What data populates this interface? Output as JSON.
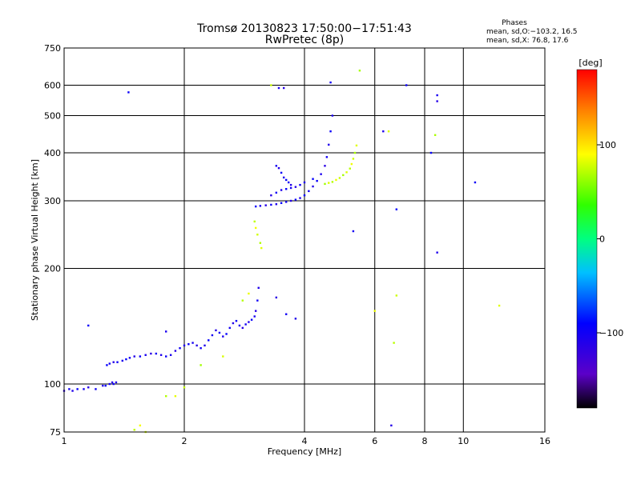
{
  "chart_data": {
    "type": "scatter",
    "title": "Tromsø 20130823 17:50:00−17:51:43",
    "subtitle": "RwPretec (8p)",
    "stats": {
      "heading": "Phases",
      "line1": "mean, sd,O:−103.2, 16.5",
      "line2": "mean, sd,X:  76.8, 17.6"
    },
    "xlabel": "Frequency [MHz]",
    "ylabel": "Stationary phase Virtual Height [km]",
    "x_scale": "log",
    "y_scale": "log",
    "xlim": [
      1,
      16
    ],
    "ylim": [
      75,
      750
    ],
    "x_ticks": [
      1,
      2,
      4,
      6,
      8,
      10,
      16
    ],
    "x_tick_labels": [
      "1",
      "2",
      "4",
      "6",
      "8",
      "10",
      "16"
    ],
    "y_ticks": [
      75,
      100,
      200,
      300,
      400,
      500,
      600,
      750
    ],
    "y_tick_labels": [
      "75",
      "100",
      "200",
      "300",
      "400",
      "500",
      "600",
      "750"
    ],
    "grid": true,
    "colorbar": {
      "label": "[deg]",
      "range": [
        -180,
        180
      ],
      "ticks": [
        100,
        0,
        -100
      ],
      "tick_labels": [
        "100",
        "0",
        "−100"
      ]
    },
    "series": [
      {
        "name": "O",
        "color_phase": -103.2,
        "points": [
          [
            1.0,
            96
          ],
          [
            1.03,
            97
          ],
          [
            1.05,
            96
          ],
          [
            1.08,
            97
          ],
          [
            1.12,
            97
          ],
          [
            1.15,
            98
          ],
          [
            1.2,
            97
          ],
          [
            1.25,
            99
          ],
          [
            1.27,
            99
          ],
          [
            1.3,
            100
          ],
          [
            1.32,
            101
          ],
          [
            1.33,
            100
          ],
          [
            1.35,
            101
          ],
          [
            1.28,
            112
          ],
          [
            1.3,
            113
          ],
          [
            1.33,
            114
          ],
          [
            1.36,
            114
          ],
          [
            1.4,
            115
          ],
          [
            1.43,
            116
          ],
          [
            1.46,
            117
          ],
          [
            1.5,
            118
          ],
          [
            1.55,
            118
          ],
          [
            1.6,
            119
          ],
          [
            1.65,
            120
          ],
          [
            1.7,
            120
          ],
          [
            1.75,
            119
          ],
          [
            1.8,
            118
          ],
          [
            1.85,
            119
          ],
          [
            1.9,
            122
          ],
          [
            1.95,
            124
          ],
          [
            2.0,
            126
          ],
          [
            2.05,
            127
          ],
          [
            2.1,
            128
          ],
          [
            2.15,
            126
          ],
          [
            2.2,
            124
          ],
          [
            2.25,
            126
          ],
          [
            2.3,
            130
          ],
          [
            2.35,
            134
          ],
          [
            2.4,
            138
          ],
          [
            2.45,
            136
          ],
          [
            2.5,
            133
          ],
          [
            2.55,
            135
          ],
          [
            2.6,
            140
          ],
          [
            2.65,
            144
          ],
          [
            2.7,
            146
          ],
          [
            2.75,
            142
          ],
          [
            2.8,
            140
          ],
          [
            2.85,
            143
          ],
          [
            2.9,
            145
          ],
          [
            2.95,
            147
          ],
          [
            3.0,
            150
          ],
          [
            3.02,
            155
          ],
          [
            3.05,
            165
          ],
          [
            3.07,
            178
          ],
          [
            3.02,
            290
          ],
          [
            3.1,
            291
          ],
          [
            3.2,
            292
          ],
          [
            3.3,
            293
          ],
          [
            3.4,
            294
          ],
          [
            3.5,
            296
          ],
          [
            3.6,
            298
          ],
          [
            3.7,
            300
          ],
          [
            3.8,
            302
          ],
          [
            3.9,
            305
          ],
          [
            4.0,
            310
          ],
          [
            4.1,
            318
          ],
          [
            4.2,
            327
          ],
          [
            4.3,
            338
          ],
          [
            4.4,
            352
          ],
          [
            4.5,
            370
          ],
          [
            4.55,
            390
          ],
          [
            4.6,
            420
          ],
          [
            4.65,
            455
          ],
          [
            4.7,
            500
          ],
          [
            3.3,
            310
          ],
          [
            3.4,
            315
          ],
          [
            3.5,
            320
          ],
          [
            3.6,
            322
          ],
          [
            3.7,
            324
          ],
          [
            3.8,
            326
          ],
          [
            3.9,
            330
          ],
          [
            4.0,
            335
          ],
          [
            4.2,
            342
          ],
          [
            3.4,
            370
          ],
          [
            3.45,
            365
          ],
          [
            3.5,
            355
          ],
          [
            3.55,
            345
          ],
          [
            3.6,
            340
          ],
          [
            3.65,
            335
          ],
          [
            3.7,
            330
          ],
          [
            1.15,
            142
          ],
          [
            1.8,
            137
          ],
          [
            3.4,
            168
          ],
          [
            3.6,
            152
          ],
          [
            3.8,
            148
          ],
          [
            1.45,
            575
          ],
          [
            3.45,
            590
          ],
          [
            3.55,
            590
          ],
          [
            4.65,
            610
          ],
          [
            6.3,
            455
          ],
          [
            8.3,
            400
          ],
          [
            8.6,
            565
          ],
          [
            8.6,
            545
          ],
          [
            10.7,
            335
          ],
          [
            8.6,
            220
          ],
          [
            6.8,
            285
          ],
          [
            5.3,
            250
          ],
          [
            6.6,
            78
          ],
          [
            7.2,
            600
          ]
        ]
      },
      {
        "name": "X",
        "color_phase": 76.8,
        "points": [
          [
            4.5,
            332
          ],
          [
            4.6,
            334
          ],
          [
            4.7,
            336
          ],
          [
            4.8,
            340
          ],
          [
            4.9,
            344
          ],
          [
            5.0,
            350
          ],
          [
            5.1,
            356
          ],
          [
            5.2,
            364
          ],
          [
            5.25,
            374
          ],
          [
            5.3,
            386
          ],
          [
            5.35,
            400
          ],
          [
            5.4,
            418
          ],
          [
            3.0,
            265
          ],
          [
            3.02,
            255
          ],
          [
            3.05,
            245
          ],
          [
            3.1,
            233
          ],
          [
            3.12,
            226
          ],
          [
            1.5,
            76
          ],
          [
            1.55,
            78
          ],
          [
            1.6,
            75
          ],
          [
            1.8,
            93
          ],
          [
            1.9,
            93
          ],
          [
            2.0,
            98
          ],
          [
            2.2,
            112
          ],
          [
            2.5,
            118
          ],
          [
            2.8,
            165
          ],
          [
            2.9,
            172
          ],
          [
            3.3,
            600
          ],
          [
            5.5,
            655
          ],
          [
            6.5,
            455
          ],
          [
            6.7,
            128
          ],
          [
            6.0,
            155
          ],
          [
            6.8,
            170
          ],
          [
            8.5,
            445
          ],
          [
            12.3,
            160
          ]
        ]
      }
    ]
  }
}
